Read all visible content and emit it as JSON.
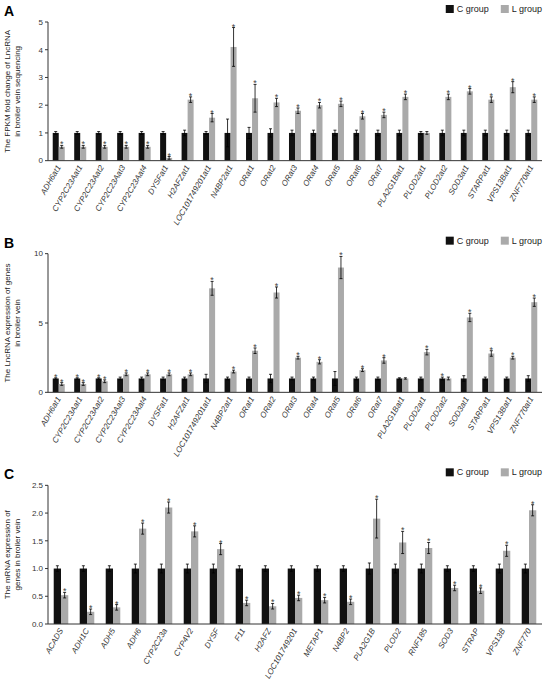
{
  "chart_data": [
    {
      "type": "bar",
      "title": "A",
      "y_label": "The FPKM fold change of LncRNA\nin broiler vein sequencing",
      "categories": [
        "ADH6at1",
        "CYP2C23Aat1",
        "CYP2C23Aat2",
        "CYP2C23Aat3",
        "CYP2C23Aat4",
        "DYSFat1",
        "H2AFZat1",
        "LOC101749201at1",
        "N4BP2at1",
        "ORat1",
        "ORat2",
        "ORat3",
        "ORat4",
        "ORat5",
        "ORat6",
        "ORat7",
        "PLA2G1Bat1",
        "PLOD2at1",
        "PLOD2at2",
        "SOD3at1",
        "STARPat1",
        "VPS13Bat1",
        "ZNF770at1"
      ],
      "series": [
        {
          "name": "C group",
          "color": "#111111",
          "values": [
            1,
            1,
            1,
            1,
            1,
            1,
            1,
            1,
            1,
            1,
            1,
            1,
            1,
            1,
            1,
            1,
            1,
            1,
            1,
            1,
            1,
            1,
            1
          ],
          "errors": [
            0.05,
            0.05,
            0.05,
            0.05,
            0.05,
            0.05,
            0.1,
            0.05,
            0.5,
            0.2,
            0.15,
            0.1,
            0.1,
            0.1,
            0.1,
            0.1,
            0.1,
            0.05,
            0.1,
            0.1,
            0.1,
            0.1,
            0.1
          ]
        },
        {
          "name": "L group",
          "color": "#aaaaaa",
          "values": [
            0.5,
            0.5,
            0.5,
            0.5,
            0.5,
            0.1,
            2.2,
            1.55,
            4.1,
            2.25,
            2.1,
            1.8,
            2.0,
            2.05,
            1.6,
            1.65,
            2.3,
            1.0,
            2.3,
            2.5,
            2.2,
            2.65,
            2.2
          ],
          "errors": [
            0.05,
            0.05,
            0.05,
            0.05,
            0.05,
            0.05,
            0.1,
            0.15,
            0.7,
            0.5,
            0.15,
            0.1,
            0.1,
            0.1,
            0.1,
            0.1,
            0.1,
            0.05,
            0.1,
            0.1,
            0.1,
            0.2,
            0.1
          ]
        }
      ],
      "ylim": [
        0,
        5
      ],
      "yticks": [
        0,
        1,
        2,
        3,
        4,
        5
      ],
      "grid": false,
      "legend": "upper right",
      "annotations": [
        {
          "text": "*",
          "category": "ADH6at1",
          "series": "L group"
        },
        {
          "text": "*",
          "category": "CYP2C23Aat1",
          "series": "L group"
        },
        {
          "text": "*",
          "category": "CYP2C23Aat2",
          "series": "L group"
        },
        {
          "text": "*",
          "category": "CYP2C23Aat3",
          "series": "L group"
        },
        {
          "text": "*",
          "category": "CYP2C23Aat4",
          "series": "L group"
        },
        {
          "text": "*",
          "category": "DYSFat1",
          "series": "L group"
        },
        {
          "text": "*",
          "category": "H2AFZat1",
          "series": "L group"
        },
        {
          "text": "*",
          "category": "LOC101749201at1",
          "series": "L group"
        },
        {
          "text": "*",
          "category": "N4BP2at1",
          "series": "L group"
        },
        {
          "text": "*",
          "category": "ORat1",
          "series": "L group"
        },
        {
          "text": "*",
          "category": "ORat2",
          "series": "L group"
        },
        {
          "text": "*",
          "category": "ORat3",
          "series": "L group"
        },
        {
          "text": "*",
          "category": "ORat4",
          "series": "L group"
        },
        {
          "text": "*",
          "category": "ORat5",
          "series": "L group"
        },
        {
          "text": "*",
          "category": "ORat6",
          "series": "L group"
        },
        {
          "text": "*",
          "category": "ORat7",
          "series": "L group"
        },
        {
          "text": "*",
          "category": "PLA2G1Bat1",
          "series": "L group"
        },
        {
          "text": "*",
          "category": "PLOD2at2",
          "series": "L group"
        },
        {
          "text": "*",
          "category": "SOD3at1",
          "series": "L group"
        },
        {
          "text": "*",
          "category": "STARPat1",
          "series": "L group"
        },
        {
          "text": "*",
          "category": "VPS13Bat1",
          "series": "L group"
        },
        {
          "text": "*",
          "category": "ZNF770at1",
          "series": "L group"
        }
      ]
    },
    {
      "type": "bar",
      "title": "B",
      "y_label": "The LncRNA expression of genes\nin broiler vein",
      "categories": [
        "ADH6at1",
        "CYP2C23Aat1",
        "CYP2C23Aat2",
        "CYP2C23Aat3",
        "CYP2C23Aat4",
        "DYSFat1",
        "H2AFZat1",
        "LOC101749201at1",
        "N4BP2at1",
        "ORat1",
        "ORat2",
        "ORat3",
        "ORat4",
        "ORat5",
        "ORat6",
        "ORat7",
        "PLA2G1Bat1",
        "PLOD2at1",
        "PLOD2at2",
        "SOD3at1",
        "STARPat1",
        "VPS13Bat1",
        "ZNF770at1"
      ],
      "series": [
        {
          "name": "C group",
          "color": "#111111",
          "values": [
            1,
            1,
            1,
            1,
            1,
            1,
            1,
            1,
            1,
            1,
            1,
            1,
            1,
            1,
            1,
            1,
            1,
            1,
            1,
            1,
            1,
            1,
            1
          ],
          "errors": [
            0.05,
            0.05,
            0.05,
            0.1,
            0.1,
            0.1,
            0.1,
            0.3,
            0.1,
            0.1,
            0.3,
            0.1,
            0.1,
            0.5,
            0.1,
            0.1,
            0.05,
            0.1,
            0.1,
            0.2,
            0.1,
            0.1,
            0.2
          ]
        },
        {
          "name": "L group",
          "color": "#aaaaaa",
          "values": [
            0.6,
            0.6,
            0.8,
            1.3,
            1.3,
            1.3,
            1.3,
            7.5,
            1.5,
            3.0,
            7.2,
            2.5,
            2.2,
            9.0,
            1.6,
            2.3,
            1.0,
            2.9,
            1.0,
            5.4,
            2.8,
            2.5,
            6.5
          ],
          "errors": [
            0.1,
            0.1,
            0.1,
            0.1,
            0.1,
            0.1,
            0.1,
            0.5,
            0.1,
            0.2,
            0.4,
            0.1,
            0.15,
            0.8,
            0.1,
            0.2,
            0.05,
            0.2,
            0.1,
            0.3,
            0.2,
            0.1,
            0.3
          ]
        }
      ],
      "ylim": [
        0,
        10
      ],
      "yticks": [
        0,
        5,
        10
      ],
      "grid": false,
      "legend": "upper right",
      "annotations": [
        {
          "text": "*",
          "category": "ADH6at1",
          "series": "L group"
        },
        {
          "text": "*",
          "category": "CYP2C23Aat1",
          "series": "L group"
        },
        {
          "text": "*",
          "category": "CYP2C23Aat2",
          "series": "L group"
        },
        {
          "text": "*",
          "category": "CYP2C23Aat3",
          "series": "L group"
        },
        {
          "text": "*",
          "category": "CYP2C23Aat4",
          "series": "L group"
        },
        {
          "text": "*",
          "category": "DYSFat1",
          "series": "L group"
        },
        {
          "text": "*",
          "category": "H2AFZat1",
          "series": "L group"
        },
        {
          "text": "*",
          "category": "LOC101749201at1",
          "series": "L group"
        },
        {
          "text": "*",
          "category": "N4BP2at1",
          "series": "L group"
        },
        {
          "text": "*",
          "category": "ORat1",
          "series": "L group"
        },
        {
          "text": "*",
          "category": "ORat2",
          "series": "L group"
        },
        {
          "text": "*",
          "category": "ORat3",
          "series": "L group"
        },
        {
          "text": "*",
          "category": "ORat4",
          "series": "L group"
        },
        {
          "text": "*",
          "category": "ORat5",
          "series": "L group"
        },
        {
          "text": "*",
          "category": "ORat6",
          "series": "L group"
        },
        {
          "text": "*",
          "category": "ORat7",
          "series": "L group"
        },
        {
          "text": "*",
          "category": "PLOD2at1",
          "series": "L group"
        },
        {
          "text": "*",
          "category": "SOD3at1",
          "series": "L group"
        },
        {
          "text": "*",
          "category": "STARPat1",
          "series": "L group"
        },
        {
          "text": "*",
          "category": "VPS13Bat1",
          "series": "L group"
        },
        {
          "text": "*",
          "category": "ZNF770at1",
          "series": "L group"
        },
        {
          "text": "*",
          "category": "ADH6at1",
          "series": "C group"
        },
        {
          "text": "*",
          "category": "CYP2C23Aat1",
          "series": "C group"
        },
        {
          "text": "*",
          "category": "CYP2C23Aat2",
          "series": "C group"
        },
        {
          "text": "*",
          "category": "PLOD2at2",
          "series": "C group"
        }
      ]
    },
    {
      "type": "bar",
      "title": "C",
      "y_label": "The mRNA expression of\ngenes in broiler vein",
      "categories": [
        "ACADS",
        "ADH1C",
        "ADH5",
        "ADH6",
        "CYP2C23a",
        "CYP4V2",
        "DYSF",
        "F11",
        "H2AFZ",
        "LOC101749201",
        "METAP1",
        "N4BP2",
        "PLA2G1B",
        "PLOD2",
        "RNF185",
        "SOD3",
        "STRAP",
        "VPS13B",
        "ZNF770"
      ],
      "series": [
        {
          "name": "C group",
          "color": "#111111",
          "values": [
            1,
            1,
            1,
            1,
            1,
            1,
            1,
            1,
            1,
            1,
            1,
            1,
            1,
            1,
            1,
            1,
            1,
            1,
            1
          ],
          "errors": [
            0.05,
            0.05,
            0.05,
            0.08,
            0.08,
            0.08,
            0.08,
            0.05,
            0.05,
            0.05,
            0.05,
            0.05,
            0.1,
            0.08,
            0.08,
            0.05,
            0.05,
            0.08,
            0.08
          ]
        },
        {
          "name": "L group",
          "color": "#aaaaaa",
          "values": [
            0.52,
            0.22,
            0.3,
            1.72,
            2.1,
            1.67,
            1.35,
            0.38,
            0.32,
            0.47,
            0.43,
            0.4,
            1.9,
            1.47,
            1.37,
            0.65,
            0.6,
            1.32,
            2.05
          ],
          "errors": [
            0.05,
            0.05,
            0.05,
            0.1,
            0.1,
            0.1,
            0.1,
            0.05,
            0.05,
            0.05,
            0.05,
            0.05,
            0.35,
            0.2,
            0.1,
            0.05,
            0.05,
            0.1,
            0.1
          ]
        }
      ],
      "ylim": [
        0,
        2.5
      ],
      "yticks": [
        {
          "value": 0,
          "label": "0.0"
        },
        0.5,
        {
          "value": 1,
          "label": "1.0"
        },
        1.5,
        {
          "value": 2,
          "label": "2.0"
        },
        2.5
      ],
      "grid": false,
      "legend": "upper right",
      "annotations": [
        {
          "text": "*",
          "category": "ACADS",
          "series": "L group"
        },
        {
          "text": "*",
          "category": "ADH1C",
          "series": "L group"
        },
        {
          "text": "*",
          "category": "ADH5",
          "series": "L group"
        },
        {
          "text": "*",
          "category": "ADH6",
          "series": "L group"
        },
        {
          "text": "*",
          "category": "CYP2C23a",
          "series": "L group"
        },
        {
          "text": "*",
          "category": "CYP4V2",
          "series": "L group"
        },
        {
          "text": "*",
          "category": "DYSF",
          "series": "L group"
        },
        {
          "text": "*",
          "category": "F11",
          "series": "L group"
        },
        {
          "text": "*",
          "category": "H2AFZ",
          "series": "L group"
        },
        {
          "text": "*",
          "category": "LOC101749201",
          "series": "L group"
        },
        {
          "text": "*",
          "category": "METAP1",
          "series": "L group"
        },
        {
          "text": "*",
          "category": "N4BP2",
          "series": "L group"
        },
        {
          "text": "*",
          "category": "PLA2G1B",
          "series": "L group"
        },
        {
          "text": "*",
          "category": "PLOD2",
          "series": "L group"
        },
        {
          "text": "*",
          "category": "RNF185",
          "series": "L group"
        },
        {
          "text": "*",
          "category": "SOD3",
          "series": "L group"
        },
        {
          "text": "*",
          "category": "STRAP",
          "series": "L group"
        },
        {
          "text": "*",
          "category": "VPS13B",
          "series": "L group"
        },
        {
          "text": "*",
          "category": "ZNF770",
          "series": "L group"
        }
      ]
    }
  ]
}
